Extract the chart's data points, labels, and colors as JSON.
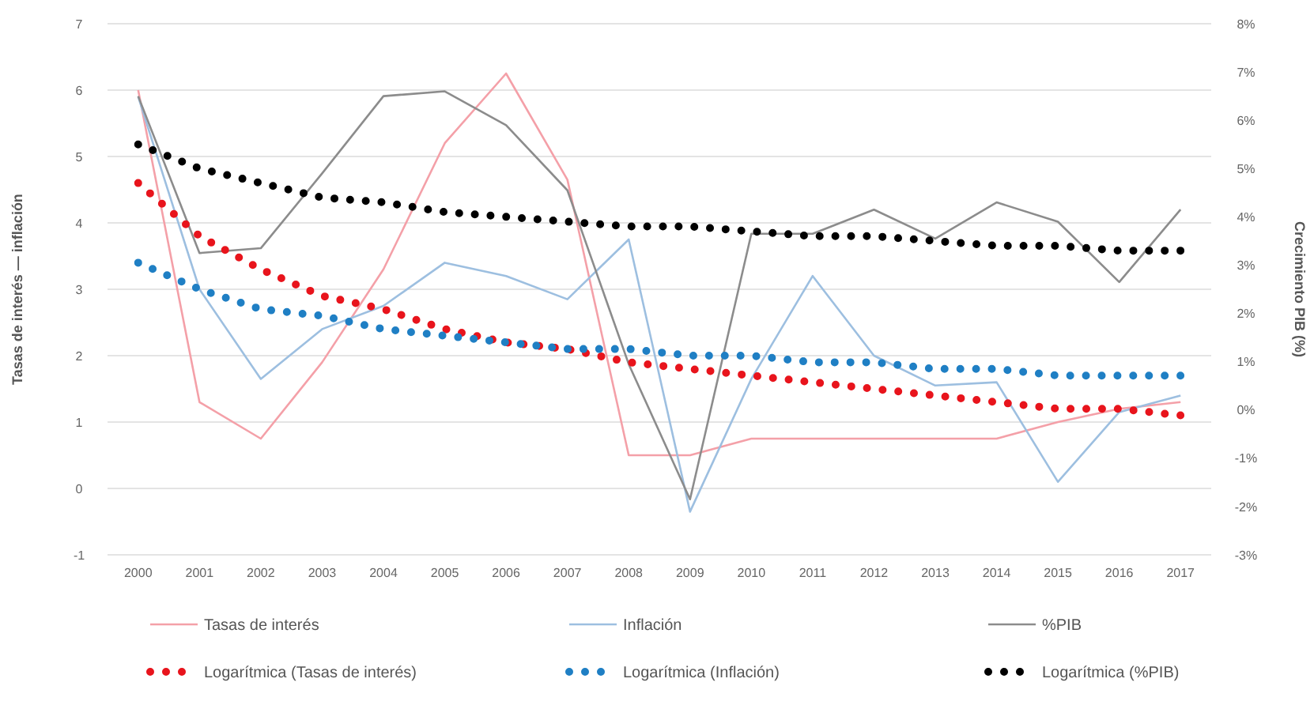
{
  "chart_data": {
    "type": "line",
    "categories": [
      "2000",
      "2001",
      "2002",
      "2003",
      "2004",
      "2005",
      "2006",
      "2007",
      "2008",
      "2009",
      "2010",
      "2011",
      "2012",
      "2013",
      "2014",
      "2015",
      "2016",
      "2017"
    ],
    "ylabel": "Tasas de interés — inflación",
    "y2label": "Crecimiento PIB (%)",
    "ylim": [
      -1,
      7
    ],
    "yticks": [
      -1,
      0,
      1,
      2,
      3,
      4,
      5,
      6,
      7
    ],
    "y2lim": [
      -3,
      8
    ],
    "y2ticks": [
      {
        "value": -3,
        "label": "-3%"
      },
      {
        "value": -2,
        "label": "-2%"
      },
      {
        "value": -1,
        "label": "-1%"
      },
      {
        "value": 0,
        "label": "0%"
      },
      {
        "value": 1,
        "label": "1%"
      },
      {
        "value": 2,
        "label": "2%"
      },
      {
        "value": 3,
        "label": "3%"
      },
      {
        "value": 4,
        "label": "4%"
      },
      {
        "value": 5,
        "label": "5%"
      },
      {
        "value": 6,
        "label": "6%"
      },
      {
        "value": 7,
        "label": "7%"
      },
      {
        "value": 8,
        "label": "8%"
      }
    ],
    "grid": "y",
    "legend": "bottom",
    "marker": "none",
    "series": [
      {
        "name": "Tasas de interés",
        "color": "#f4a0a8",
        "line_style": "solid",
        "values": [
          6.0,
          1.3,
          0.75,
          1.9,
          3.3,
          5.2,
          6.25,
          4.65,
          0.5,
          0.5,
          0.75,
          0.75,
          0.75,
          0.75,
          0.75,
          1.0,
          1.2,
          1.3
        ]
      },
      {
        "name": "Inflación",
        "color": "#9dbfe0",
        "line_style": "solid",
        "values": [
          5.9,
          3.0,
          1.65,
          2.4,
          2.75,
          3.4,
          3.2,
          2.85,
          3.75,
          -0.35,
          1.65,
          3.2,
          2.0,
          1.55,
          1.6,
          0.1,
          1.15,
          1.4
        ]
      },
      {
        "name": "%PIB",
        "color": "#8c8c8c",
        "axis": "y2",
        "line_style": "solid",
        "values": [
          6.5,
          3.25,
          3.35,
          4.9,
          6.5,
          6.6,
          5.9,
          4.55,
          0.95,
          -1.85,
          3.65,
          3.65,
          4.15,
          3.55,
          4.3,
          3.9,
          2.65,
          4.15
        ]
      },
      {
        "name": "Logarítmica (Tasas de interés)",
        "color": "#e8141c",
        "line_style": "dotted",
        "values": [
          4.6,
          3.8,
          3.3,
          2.9,
          2.7,
          2.4,
          2.2,
          2.1,
          1.9,
          1.8,
          1.7,
          1.6,
          1.5,
          1.4,
          1.3,
          1.2,
          1.2,
          1.1
        ]
      },
      {
        "name": "Logarítmica (Inflación)",
        "color": "#1f7fc4",
        "line_style": "dotted",
        "values": [
          3.4,
          3.0,
          2.7,
          2.6,
          2.4,
          2.3,
          2.2,
          2.1,
          2.1,
          2.0,
          2.0,
          1.9,
          1.9,
          1.8,
          1.8,
          1.7,
          1.7,
          1.7
        ]
      },
      {
        "name": "Logarítmica (%PIB)",
        "color": "#000000",
        "axis": "y2",
        "line_style": "dotted",
        "values": [
          5.5,
          5.0,
          4.7,
          4.4,
          4.3,
          4.1,
          4.0,
          3.9,
          3.8,
          3.8,
          3.7,
          3.6,
          3.6,
          3.5,
          3.4,
          3.4,
          3.3,
          3.3
        ]
      }
    ]
  }
}
